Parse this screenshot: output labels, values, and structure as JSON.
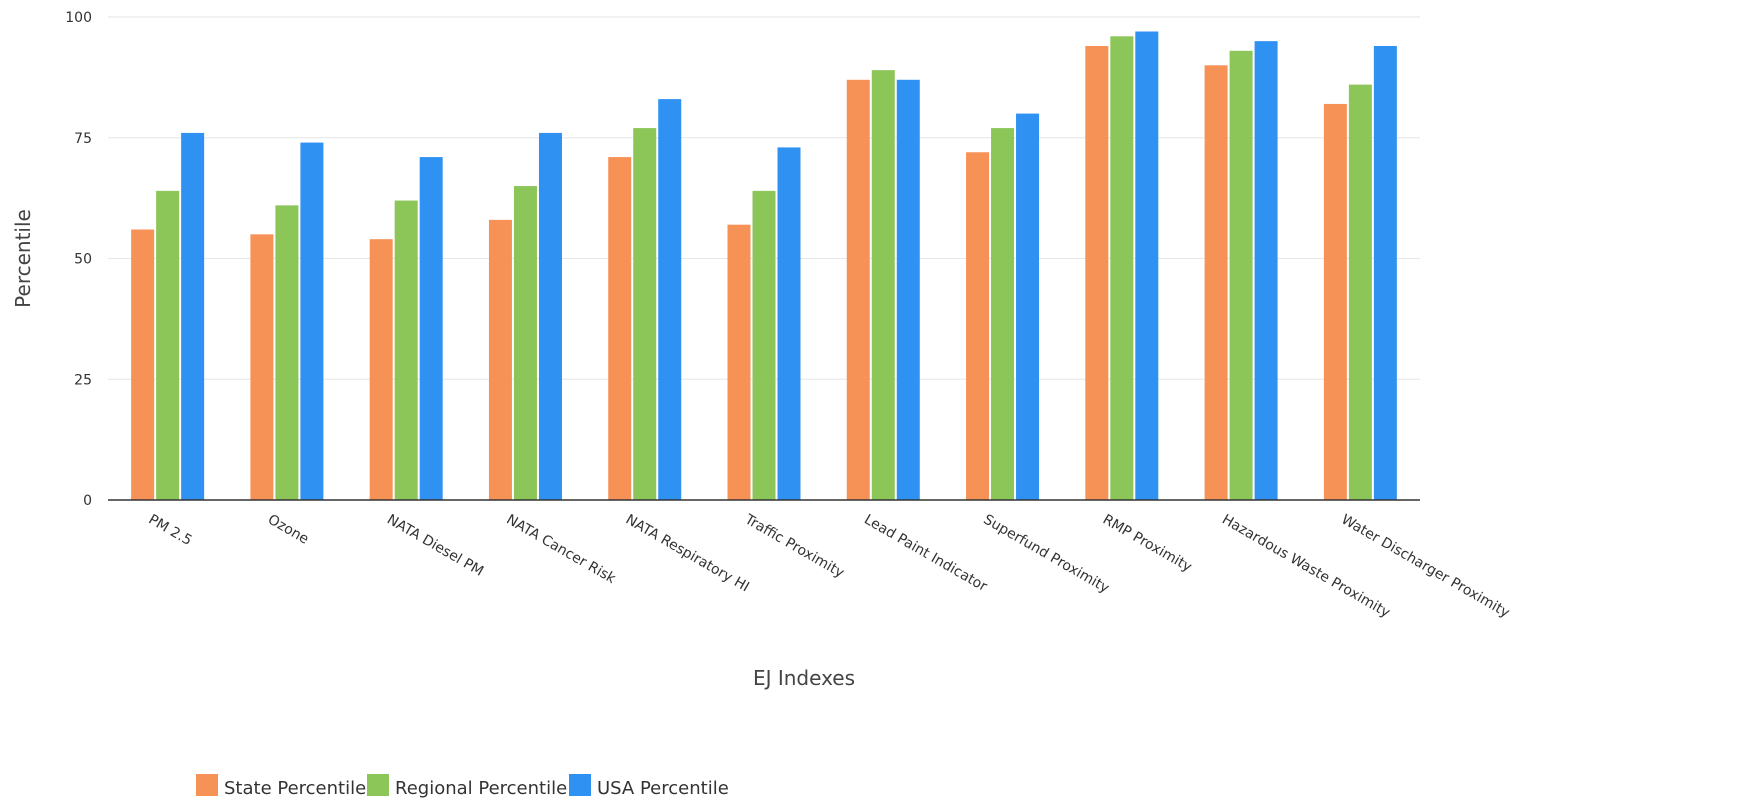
{
  "chart_data": {
    "type": "bar",
    "title": "",
    "xlabel": "EJ Indexes",
    "ylabel": "Percentile",
    "ylim": [
      0,
      100
    ],
    "yticks": [
      0,
      25,
      50,
      75,
      100
    ],
    "grid": true,
    "legend_placement": "bottom-left",
    "categories": [
      "PM 2.5",
      "Ozone",
      "NATA Diesel PM",
      "NATA Cancer Risk",
      "NATA Respiratory HI",
      "Traffic Proximity",
      "Lead Paint Indicator",
      "Superfund Proximity",
      "RMP Proximity",
      "Hazardous Waste Proximity",
      "Water Discharger Proximity"
    ],
    "series": [
      {
        "name": "State Percentile",
        "color": "#f79257",
        "values": [
          56,
          55,
          54,
          58,
          71,
          57,
          87,
          72,
          94,
          90,
          82
        ]
      },
      {
        "name": "Regional Percentile",
        "color": "#8cc558",
        "values": [
          64,
          61,
          62,
          65,
          77,
          64,
          89,
          77,
          96,
          93,
          86
        ]
      },
      {
        "name": "USA Percentile",
        "color": "#2f92f2",
        "values": [
          76,
          74,
          71,
          76,
          83,
          73,
          87,
          80,
          97,
          95,
          94
        ]
      }
    ]
  }
}
